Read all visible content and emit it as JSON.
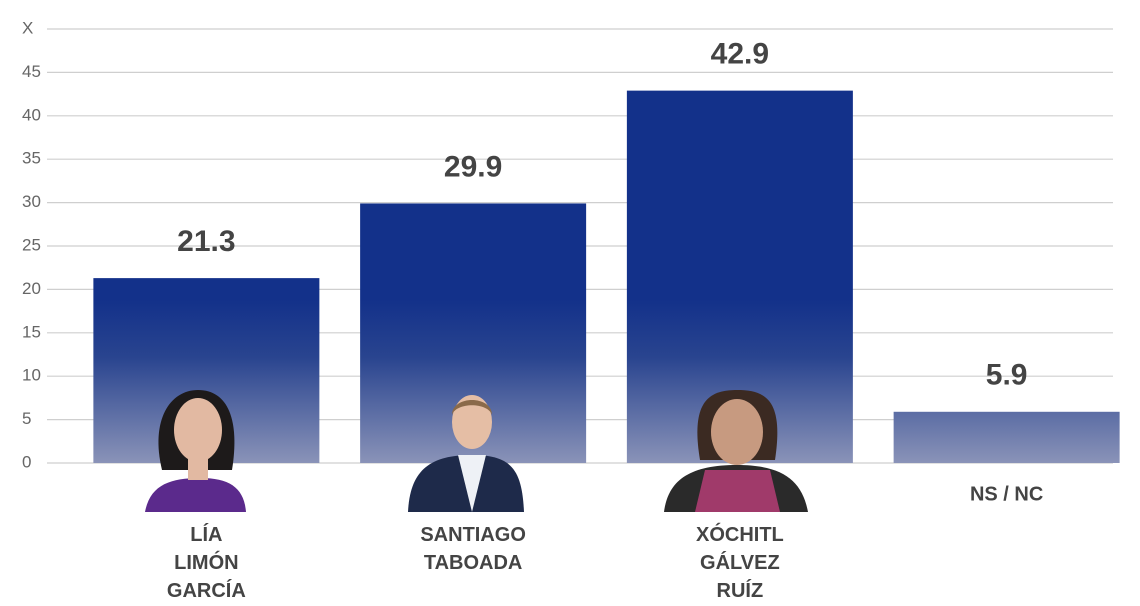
{
  "chart_data": {
    "type": "bar",
    "categories": [
      "LÍA\nLIMÓN\nGARCÍA",
      "SANTIAGO\nTABOADA",
      "XÓCHITL\nGÁLVEZ\nRUÍZ",
      "NS / NC"
    ],
    "values": [
      21.3,
      29.9,
      42.9,
      5.9
    ],
    "color": "#13318a",
    "ylim": [
      0,
      50
    ],
    "yticks": [
      0,
      5,
      10,
      15,
      20,
      25,
      30,
      35,
      40,
      45,
      {
        "value": 50,
        "label": "X"
      }
    ],
    "grid": true
  }
}
